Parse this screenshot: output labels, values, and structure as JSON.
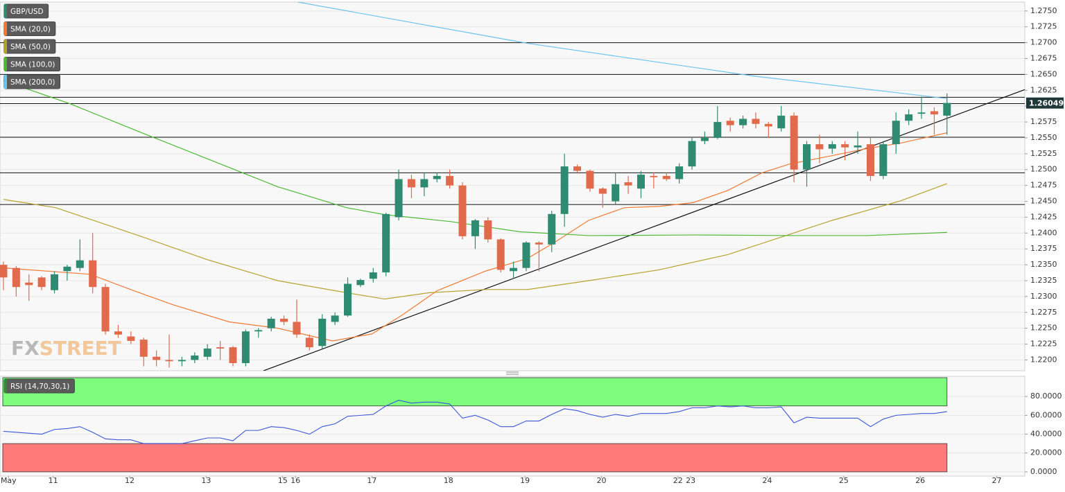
{
  "chart_data": {
    "type": "candlestick",
    "x": [
      0,
      1,
      2,
      3,
      4,
      5,
      6,
      7,
      8,
      9,
      10,
      11,
      12,
      13,
      14,
      15,
      16,
      17,
      18,
      19,
      20,
      21,
      22,
      23,
      24,
      25,
      26,
      27,
      28,
      29,
      30,
      31,
      32,
      33,
      34,
      35,
      36,
      37,
      38,
      39,
      40,
      41,
      42,
      43,
      44,
      45,
      46,
      47,
      48,
      49,
      50,
      51,
      52,
      53,
      54,
      55,
      56,
      57,
      58,
      59,
      60,
      61,
      62,
      63,
      64,
      65,
      66,
      67,
      68,
      69,
      70,
      71,
      72,
      73,
      74
    ],
    "series": [
      {
        "name": "GBP/USD",
        "color": "#2e8b71",
        "down_color": "#e06a4b",
        "open": [
          1.235,
          1.2345,
          1.2322,
          1.233,
          1.231,
          1.234,
          1.2345,
          1.2357,
          1.2315,
          1.2245,
          1.2237,
          1.2232,
          1.2205,
          1.22,
          1.2198,
          1.22,
          1.2205,
          1.222,
          1.222,
          1.2195,
          1.2245,
          1.225,
          1.2265,
          1.226,
          1.2235,
          1.2222,
          1.226,
          1.227,
          1.2318,
          1.2328,
          1.2338,
          1.2425,
          1.2485,
          1.2472,
          1.2485,
          1.249,
          1.2475,
          1.2395,
          1.242,
          1.239,
          1.234,
          1.2345,
          1.2385,
          1.2382,
          1.243,
          1.2505,
          1.2498,
          1.247,
          1.245,
          1.248,
          1.247,
          1.249,
          1.249,
          1.2485,
          1.2505,
          1.2545,
          1.255,
          1.2577,
          1.257,
          1.258,
          1.2572,
          1.2565,
          1.2585,
          1.25,
          1.254,
          1.2533,
          1.254,
          1.2535,
          1.254,
          1.249,
          1.254,
          1.2577,
          1.2588,
          1.2592,
          1.2585
        ],
        "high": [
          1.2355,
          1.2348,
          1.2335,
          1.2332,
          1.234,
          1.235,
          1.239,
          1.24,
          1.232,
          1.2255,
          1.2245,
          1.2235,
          1.2215,
          1.224,
          1.2205,
          1.2212,
          1.2225,
          1.223,
          1.2222,
          1.2248,
          1.225,
          1.2268,
          1.227,
          1.2295,
          1.224,
          1.2272,
          1.2275,
          1.233,
          1.2328,
          1.2345,
          1.2432,
          1.25,
          1.2492,
          1.2495,
          1.2495,
          1.25,
          1.248,
          1.2422,
          1.2425,
          1.2392,
          1.2355,
          1.2387,
          1.2387,
          1.2435,
          1.2525,
          1.2508,
          1.25,
          1.2472,
          1.2495,
          1.249,
          1.2498,
          1.2495,
          1.2495,
          1.251,
          1.255,
          1.256,
          1.26,
          1.2582,
          1.2585,
          1.259,
          1.2575,
          1.26,
          1.259,
          1.2545,
          1.2555,
          1.2545,
          1.2545,
          1.256,
          1.255,
          1.2545,
          1.259,
          1.2595,
          1.2615,
          1.2598,
          1.262
        ],
        "low": [
          1.231,
          1.23,
          1.2293,
          1.231,
          1.2305,
          1.2325,
          1.234,
          1.2305,
          1.224,
          1.2235,
          1.2225,
          1.219,
          1.219,
          1.2188,
          1.219,
          1.2195,
          1.22,
          1.22,
          1.219,
          1.219,
          1.2235,
          1.2245,
          1.2255,
          1.2235,
          1.2215,
          1.2218,
          1.2255,
          1.2268,
          1.2315,
          1.2322,
          1.2332,
          1.242,
          1.2455,
          1.2458,
          1.248,
          1.247,
          1.239,
          1.2375,
          1.2385,
          1.2338,
          1.2328,
          1.234,
          1.234,
          1.237,
          1.241,
          1.2495,
          1.2465,
          1.244,
          1.2445,
          1.2462,
          1.2455,
          1.247,
          1.2482,
          1.2478,
          1.25,
          1.254,
          1.2548,
          1.256,
          1.2565,
          1.2565,
          1.255,
          1.256,
          1.248,
          1.2473,
          1.251,
          1.2525,
          1.2515,
          1.2525,
          1.2482,
          1.2485,
          1.2525,
          1.257,
          1.258,
          1.2555,
          1.2555
        ],
        "close": [
          1.233,
          1.2315,
          1.2318,
          1.2315,
          1.2335,
          1.2347,
          1.2357,
          1.2315,
          1.2245,
          1.224,
          1.223,
          1.2205,
          1.22,
          1.2198,
          1.22,
          1.2207,
          1.2218,
          1.2218,
          1.2195,
          1.2245,
          1.2247,
          1.2265,
          1.226,
          1.224,
          1.222,
          1.2265,
          1.227,
          1.232,
          1.2326,
          1.2338,
          1.243,
          1.2485,
          1.2472,
          1.2485,
          1.249,
          1.2475,
          1.2395,
          1.242,
          1.239,
          1.2342,
          1.2345,
          1.2385,
          1.2382,
          1.243,
          1.2505,
          1.2498,
          1.247,
          1.2462,
          1.2477,
          1.2475,
          1.2492,
          1.2488,
          1.2485,
          1.2505,
          1.2545,
          1.255,
          1.2575,
          1.257,
          1.258,
          1.2572,
          1.2568,
          1.2585,
          1.25,
          1.254,
          1.2532,
          1.254,
          1.2535,
          1.2538,
          1.249,
          1.254,
          1.2577,
          1.2587,
          1.259,
          1.2587,
          1.2605
        ]
      },
      {
        "name": "SMA (20,0)",
        "type": "line",
        "color": "#f07a32",
        "x": [
          0,
          6.8,
          10.1,
          13.3,
          17.7,
          21.5,
          25.8,
          28.9,
          31.3,
          34.0,
          37.8,
          41.1,
          43.2,
          45.9,
          48.7,
          51.4,
          54.1,
          56.8,
          59.5,
          61.7,
          65.0,
          67.7,
          70.4,
          74
        ],
        "values": [
          1.2345,
          1.2335,
          1.231,
          1.2287,
          1.226,
          1.225,
          1.223,
          1.2241,
          1.2271,
          1.2309,
          1.234,
          1.236,
          1.2385,
          1.242,
          1.244,
          1.2442,
          1.2448,
          1.2467,
          1.2495,
          1.2509,
          1.2522,
          1.2533,
          1.2542,
          1.2558
        ]
      },
      {
        "name": "SMA (50,0)",
        "type": "line",
        "color": "#b5a22d",
        "x": [
          0,
          4.1,
          10.6,
          16.0,
          21.5,
          26.9,
          29.9,
          33.4,
          37.8,
          41.1,
          45.9,
          51.4,
          56.8,
          60.6,
          65.0,
          70.4,
          74
        ],
        "values": [
          1.2453,
          1.244,
          1.2396,
          1.2358,
          1.2325,
          1.2306,
          1.2296,
          1.2306,
          1.2311,
          1.2311,
          1.2325,
          1.2342,
          1.2366,
          1.2391,
          1.242,
          1.2451,
          1.2478
        ]
      },
      {
        "name": "SMA (100,0)",
        "type": "line",
        "color": "#4cb830",
        "x": [
          0,
          5.2,
          10.6,
          16.0,
          21.5,
          26.9,
          29.9,
          35.1,
          40.5,
          45.9,
          54.1,
          62.3,
          67.7,
          74
        ],
        "values": [
          1.264,
          1.2604,
          1.256,
          1.2517,
          1.2473,
          1.244,
          1.2429,
          1.2418,
          1.2402,
          1.2396,
          1.2397,
          1.2396,
          1.2396,
          1.2401
        ]
      },
      {
        "name": "SMA (200,0)",
        "type": "line",
        "color": "#6cc3ee",
        "x": [
          23.1,
          41.1,
          59.0,
          74
        ],
        "values": [
          1.2764,
          1.2699,
          1.2647,
          1.2612
        ]
      }
    ],
    "levels": [
      1.27,
      1.265,
      1.2614,
      1.2604,
      1.2551,
      1.2495,
      1.2445
    ],
    "trendline": {
      "x": [
        20.4,
        80.1
      ],
      "values": [
        1.2183,
        1.2626
      ]
    },
    "last_price": 1.26049,
    "xlim": [
      -0.27,
      80.1
    ],
    "xticks": [
      {
        "value": 0.4,
        "label": "May"
      },
      {
        "value": 3.9,
        "label": "11"
      },
      {
        "value": 9.9,
        "label": "12"
      },
      {
        "value": 15.9,
        "label": "13"
      },
      {
        "value": 21.9,
        "label": "15"
      },
      {
        "value": 22.9,
        "label": "16"
      },
      {
        "value": 28.9,
        "label": "17"
      },
      {
        "value": 34.9,
        "label": "18"
      },
      {
        "value": 40.9,
        "label": "19"
      },
      {
        "value": 46.9,
        "label": "20"
      },
      {
        "value": 52.9,
        "label": "22"
      },
      {
        "value": 53.9,
        "label": "23"
      },
      {
        "value": 59.9,
        "label": "24"
      },
      {
        "value": 65.9,
        "label": "25"
      },
      {
        "value": 71.9,
        "label": "26"
      },
      {
        "value": 77.9,
        "label": "27"
      }
    ],
    "ylim": [
      1.2183,
      1.2764
    ],
    "yticks": [
      {
        "value": 1.22,
        "label": "1.2200"
      },
      {
        "value": 1.2225,
        "label": "1.2225"
      },
      {
        "value": 1.225,
        "label": "1.2250"
      },
      {
        "value": 1.2275,
        "label": "1.2275"
      },
      {
        "value": 1.23,
        "label": "1.2300"
      },
      {
        "value": 1.2325,
        "label": "1.2325"
      },
      {
        "value": 1.235,
        "label": "1.2350"
      },
      {
        "value": 1.2375,
        "label": "1.2375"
      },
      {
        "value": 1.24,
        "label": "1.2400"
      },
      {
        "value": 1.2425,
        "label": "1.2425"
      },
      {
        "value": 1.245,
        "label": "1.2450"
      },
      {
        "value": 1.2475,
        "label": "1.2475"
      },
      {
        "value": 1.25,
        "label": "1.2500"
      },
      {
        "value": 1.2525,
        "label": "1.2525"
      },
      {
        "value": 1.255,
        "label": "1.2550"
      },
      {
        "value": 1.2575,
        "label": "1.2575"
      },
      {
        "value": 1.26,
        "label": "1.2600"
      },
      {
        "value": 1.2625,
        "label": "1.2625"
      },
      {
        "value": 1.265,
        "label": "1.2650"
      },
      {
        "value": 1.2675,
        "label": "1.2675"
      },
      {
        "value": 1.27,
        "label": "1.2700"
      },
      {
        "value": 1.2725,
        "label": "1.2725"
      },
      {
        "value": 1.275,
        "label": "1.2750"
      }
    ],
    "grid": true,
    "rsi": {
      "name": "RSI (14,70,30,1)",
      "color": "#3a55d8",
      "values": [
        43,
        42,
        41,
        40,
        45,
        46,
        48,
        42,
        35,
        34,
        34,
        30,
        30,
        30,
        30,
        33,
        36,
        36,
        33,
        44,
        44,
        48,
        47,
        44,
        40,
        48,
        51,
        59,
        60,
        61,
        70,
        76,
        73,
        74,
        74,
        72,
        57,
        60,
        55,
        48,
        48,
        54,
        54,
        61,
        67,
        65,
        61,
        58,
        61,
        59,
        62,
        62,
        62,
        64,
        68,
        68,
        70,
        69,
        70,
        68,
        68,
        69,
        52,
        58,
        57,
        57,
        57,
        57,
        48,
        56,
        60,
        61,
        62,
        62,
        64
      ],
      "bands": [
        {
          "range": [
            70,
            100
          ],
          "color": "#7dfc7d"
        },
        {
          "range": [
            0,
            30
          ],
          "color": "#ff7b7b"
        }
      ],
      "ylim": [
        -3,
        100
      ],
      "yticks": [
        {
          "value": 0,
          "label": "0.0000"
        },
        {
          "value": 20,
          "label": "20.0000"
        },
        {
          "value": 40,
          "label": "40.0000"
        },
        {
          "value": 60,
          "label": "60.0000"
        },
        {
          "value": 80,
          "label": "80.0000"
        }
      ]
    },
    "watermark": [
      "FX",
      "STREET"
    ]
  }
}
